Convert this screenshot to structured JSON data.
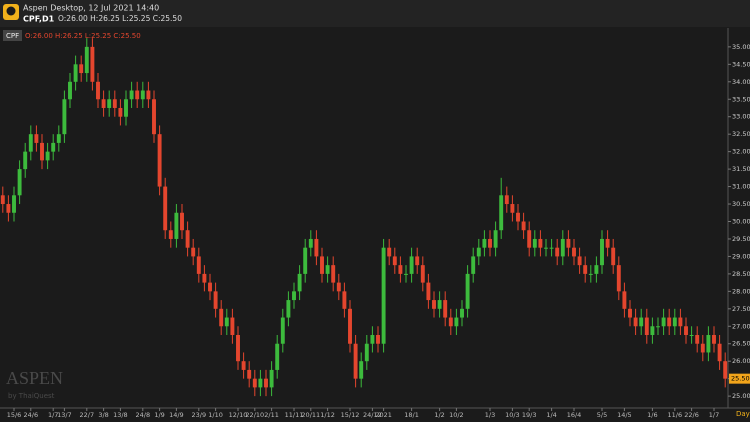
{
  "header": {
    "title": "Aspen Desktop, 12 Jul 2021 14:40",
    "symbol": "CPF,D1",
    "ohlc": "O:26.00 H:26.25 L:25.25 C:25.50"
  },
  "chart_data": {
    "type": "candlestick",
    "symbol": "CPF",
    "ohlc_label": "O:26.00 H:26.25 L:25.25 C:25.50",
    "period": "Day",
    "watermark": "ASPEN",
    "watermark_sub": "by ThaiQuest",
    "categories": [
      null,
      null,
      "15/6",
      null,
      null,
      "24/6",
      null,
      null,
      null,
      "1/7",
      null,
      "13/7",
      null,
      null,
      null,
      "22/7",
      null,
      null,
      "3/8",
      null,
      null,
      "13/8",
      null,
      null,
      null,
      "24/8",
      null,
      null,
      "1/9",
      null,
      null,
      "14/9",
      null,
      null,
      null,
      "23/9",
      null,
      null,
      "1/10",
      null,
      null,
      null,
      "12/10",
      null,
      null,
      "22/10",
      null,
      null,
      "2/11",
      null,
      null,
      null,
      "11/11",
      null,
      null,
      "20/11",
      null,
      null,
      "1/12",
      null,
      null,
      null,
      "15/12",
      null,
      null,
      null,
      "24/12",
      null,
      "2021",
      null,
      null,
      null,
      null,
      "18/1",
      null,
      null,
      null,
      null,
      "1/2",
      null,
      null,
      "10/2",
      null,
      null,
      null,
      null,
      null,
      "1/3",
      null,
      null,
      null,
      "10/3",
      null,
      null,
      "19/3",
      null,
      null,
      null,
      "1/4",
      null,
      null,
      null,
      "16/4",
      null,
      null,
      null,
      null,
      "5/5",
      null,
      null,
      null,
      "14/5",
      null,
      null,
      null,
      null,
      "1/6",
      null,
      null,
      null,
      "11/6",
      null,
      null,
      "22/6",
      null,
      null,
      null,
      "1/7",
      null,
      null
    ],
    "open": [
      30.75,
      30.5,
      30.25,
      30.75,
      31.5,
      32,
      32.5,
      32.25,
      31.75,
      32,
      32.25,
      32.5,
      33.5,
      34,
      34.5,
      34.25,
      35,
      34,
      33.5,
      33.25,
      33.5,
      33.25,
      33,
      33.5,
      33.75,
      33.5,
      33.75,
      33.5,
      32.5,
      31,
      29.75,
      29.5,
      30.25,
      29.75,
      29.25,
      29,
      28.5,
      28.25,
      28,
      27.5,
      27,
      27.25,
      26.75,
      26,
      25.75,
      25.5,
      25.25,
      25.5,
      25.25,
      25.75,
      26.5,
      27.25,
      27.75,
      28,
      28.5,
      29.25,
      29.5,
      29,
      28.5,
      28.75,
      28.25,
      28,
      27.5,
      26.5,
      25.5,
      26,
      26.5,
      26.75,
      26.5,
      29.25,
      29,
      28.75,
      28.5,
      28.5,
      29,
      28.75,
      28.25,
      27.75,
      27.5,
      27.75,
      27.25,
      27,
      27.25,
      27.5,
      28.5,
      29,
      29.25,
      29.5,
      29.25,
      29.75,
      30.75,
      30.5,
      30.25,
      30,
      29.75,
      29.25,
      29.5,
      29.25,
      29.25,
      29.25,
      29,
      29.5,
      29.25,
      29,
      28.75,
      28.5,
      28.5,
      28.75,
      29.5,
      29.25,
      28.75,
      28,
      27.5,
      27.25,
      27,
      27.25,
      26.75,
      27,
      27,
      27.25,
      27,
      27.25,
      27,
      26.75,
      26.75,
      26.5,
      26.25,
      26.75,
      26.5,
      26
    ],
    "high": [
      31,
      30.75,
      31,
      31.75,
      32.25,
      32.75,
      32.75,
      32.5,
      32.25,
      32.5,
      32.75,
      33.75,
      34.25,
      34.75,
      34.75,
      35.25,
      35.25,
      34.25,
      33.75,
      33.75,
      33.75,
      33.5,
      33.75,
      34,
      34,
      34,
      34,
      33.75,
      32.75,
      31.25,
      30,
      30.5,
      30.5,
      30,
      29.5,
      29.25,
      28.75,
      28.5,
      28.25,
      27.75,
      27.5,
      27.5,
      27,
      26.25,
      26,
      25.75,
      25.75,
      25.75,
      26,
      26.75,
      27.5,
      28,
      28.25,
      28.75,
      29.5,
      29.75,
      29.75,
      29.25,
      29,
      29,
      28.5,
      28.25,
      27.75,
      26.75,
      26.25,
      26.75,
      27,
      27,
      29.5,
      29.5,
      29.25,
      29,
      28.75,
      29.25,
      29.25,
      29,
      28.5,
      28,
      28,
      28,
      27.5,
      27.5,
      27.75,
      28.75,
      29.25,
      29.5,
      29.75,
      29.75,
      30,
      31.25,
      31,
      30.75,
      30.5,
      30.25,
      30,
      29.75,
      29.75,
      29.5,
      29.5,
      29.5,
      29.75,
      29.75,
      29.5,
      29.25,
      29,
      28.75,
      29,
      29.75,
      29.75,
      29.5,
      29,
      28.25,
      27.75,
      27.5,
      27.5,
      27.5,
      27.25,
      27.25,
      27.5,
      27.5,
      27.5,
      27.5,
      27.25,
      27,
      27,
      26.75,
      27,
      27,
      26.75,
      26.25
    ],
    "low": [
      30.25,
      30,
      30,
      30.5,
      31.25,
      31.75,
      32,
      31.5,
      31.5,
      31.75,
      32,
      32.25,
      33.25,
      33.75,
      34,
      34,
      33.75,
      33.25,
      33,
      33,
      33,
      32.75,
      32.75,
      33.25,
      33.25,
      33.25,
      33.25,
      32.25,
      30.75,
      29.5,
      29.25,
      29.25,
      29.5,
      29,
      28.75,
      28.25,
      28,
      27.75,
      27.25,
      26.75,
      26.75,
      26.5,
      25.75,
      25.5,
      25.25,
      25,
      25,
      25,
      25,
      25.5,
      26.25,
      27,
      27.5,
      27.75,
      28.25,
      29,
      28.75,
      28.25,
      28.25,
      28,
      27.75,
      27.25,
      26.25,
      25.25,
      25.25,
      25.75,
      26.25,
      26.25,
      26.25,
      28.75,
      28.5,
      28.25,
      28.25,
      28.25,
      28.5,
      28,
      27.5,
      27.25,
      27.25,
      27,
      26.75,
      26.75,
      27,
      27.25,
      28.25,
      28.75,
      29,
      29,
      29,
      29.5,
      30.25,
      30,
      29.75,
      29.5,
      29,
      29,
      29,
      29,
      29,
      28.75,
      28.75,
      29,
      28.75,
      28.5,
      28.25,
      28.25,
      28.25,
      28.5,
      29,
      28.5,
      27.75,
      27.25,
      27,
      26.75,
      26.75,
      26.5,
      26.5,
      26.75,
      26.75,
      26.75,
      26.75,
      26.75,
      26.5,
      26.5,
      26.25,
      26,
      26,
      26.25,
      25.75,
      25.25
    ],
    "close": [
      30.5,
      30.25,
      30.75,
      31.5,
      32,
      32.5,
      32.25,
      31.75,
      32,
      32.25,
      32.5,
      33.5,
      34,
      34.5,
      34.25,
      35,
      34,
      33.5,
      33.25,
      33.5,
      33.25,
      33,
      33.5,
      33.75,
      33.5,
      33.75,
      33.5,
      32.5,
      31,
      29.75,
      29.5,
      30.25,
      29.75,
      29.25,
      29,
      28.5,
      28.25,
      28,
      27.5,
      27,
      27.25,
      26.75,
      26,
      25.75,
      25.5,
      25.25,
      25.5,
      25.25,
      25.75,
      26.5,
      27.25,
      27.75,
      28,
      28.5,
      29.25,
      29.5,
      29,
      28.5,
      28.75,
      28.25,
      28,
      27.5,
      26.5,
      25.5,
      26,
      26.5,
      26.75,
      26.5,
      29.25,
      29,
      28.75,
      28.5,
      28.5,
      29,
      28.75,
      28.25,
      27.75,
      27.5,
      27.75,
      27.25,
      27,
      27.25,
      27.5,
      28.5,
      29,
      29.25,
      29.5,
      29.25,
      29.75,
      30.75,
      30.5,
      30.25,
      30,
      29.75,
      29.25,
      29.5,
      29.25,
      29.25,
      29.25,
      29,
      29.5,
      29.25,
      29,
      28.75,
      28.5,
      28.5,
      28.75,
      29.5,
      29.25,
      28.75,
      28,
      27.5,
      27.25,
      27,
      27.25,
      26.75,
      27,
      27,
      27.25,
      27,
      27.25,
      27,
      26.75,
      26.75,
      26.5,
      26.25,
      26.75,
      26.5,
      26,
      25.5
    ],
    "up_color": "#3dbb3d",
    "down_color": "#e4462e",
    "ylim": [
      24.66,
      35.54
    ],
    "yticks": [
      {
        "value": 25,
        "label": "25.00"
      },
      {
        "value": 25.5,
        "label": "25.50"
      },
      {
        "value": 26,
        "label": "26.00"
      },
      {
        "value": 26.5,
        "label": "26.50"
      },
      {
        "value": 27,
        "label": "27.00"
      },
      {
        "value": 27.5,
        "label": "27.50"
      },
      {
        "value": 28,
        "label": "28.00"
      },
      {
        "value": 28.5,
        "label": "28.50"
      },
      {
        "value": 29,
        "label": "29.00"
      },
      {
        "value": 29.5,
        "label": "29.50"
      },
      {
        "value": 30,
        "label": "30.00"
      },
      {
        "value": 30.5,
        "label": "30.50"
      },
      {
        "value": 31,
        "label": "31.00"
      },
      {
        "value": 31.5,
        "label": "31.50"
      },
      {
        "value": 32,
        "label": "32.00"
      },
      {
        "value": 32.5,
        "label": "32.50"
      },
      {
        "value": 33,
        "label": "33.00"
      },
      {
        "value": 33.5,
        "label": "33.50"
      },
      {
        "value": 34,
        "label": "34.00"
      },
      {
        "value": 34.5,
        "label": "34.50"
      },
      {
        "value": 35,
        "label": "35.00"
      }
    ],
    "last_price": {
      "value": 25.5,
      "label": "25.50"
    }
  }
}
